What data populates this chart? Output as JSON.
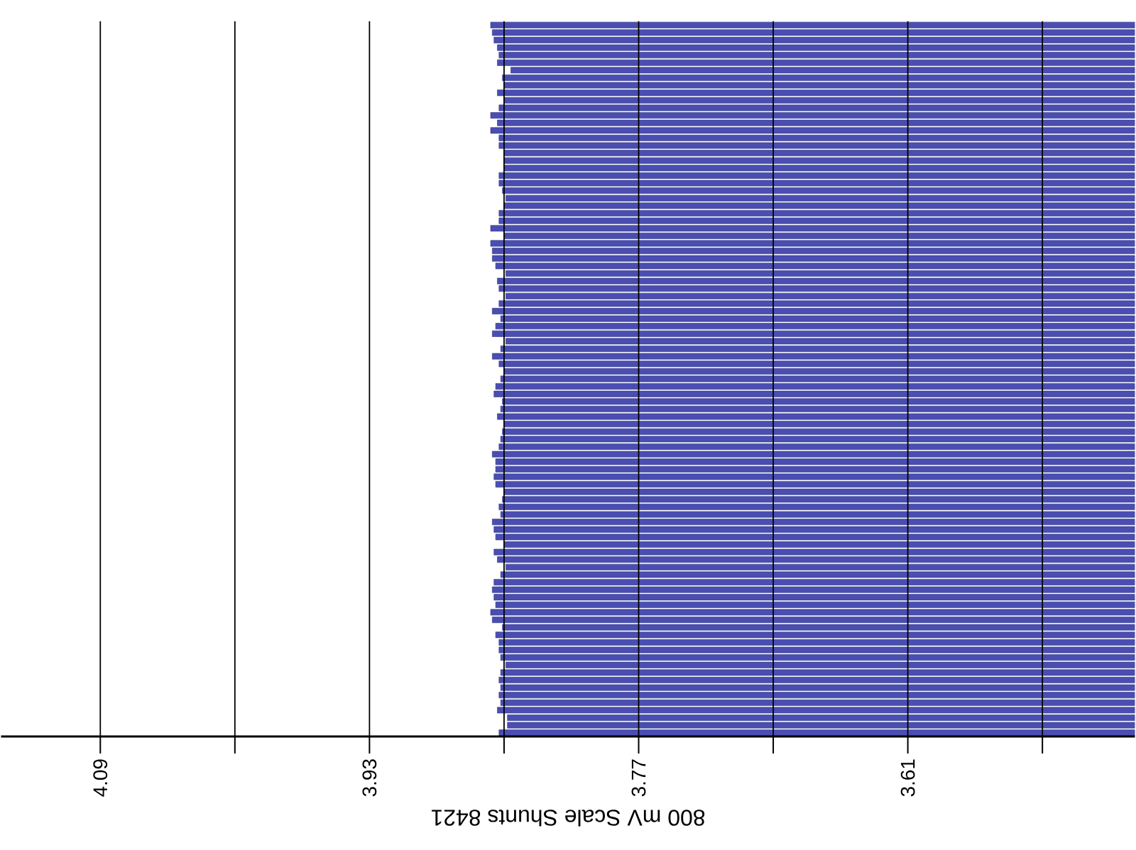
{
  "chart_data": {
    "type": "bar",
    "orientation": "horizontal",
    "xlabel": "800 mV Scale  Shunts 8421",
    "categories": [
      null,
      null,
      null,
      null,
      null,
      null,
      null,
      null,
      null,
      null,
      null,
      null,
      null,
      null,
      null,
      null,
      null,
      null,
      null,
      null,
      null,
      null,
      null,
      null,
      null,
      null,
      null,
      null,
      null,
      null,
      null,
      null,
      null,
      null,
      null,
      null,
      null,
      null,
      null,
      null,
      null,
      null,
      null,
      null,
      null,
      null,
      null,
      null,
      null,
      null,
      null,
      null,
      null,
      null,
      null,
      null,
      null,
      null,
      null,
      null,
      null,
      null,
      null,
      null,
      null,
      null,
      null,
      null,
      null,
      null,
      null,
      null,
      null,
      null,
      null,
      null,
      null,
      null,
      null,
      null,
      null,
      null,
      null,
      null,
      null,
      null,
      null,
      null,
      null,
      null,
      null,
      null,
      null,
      null,
      null
    ],
    "values": [
      3.858,
      3.857,
      3.856,
      3.854,
      3.853,
      3.854,
      3.846,
      3.851,
      3.85,
      3.854,
      3.85,
      3.853,
      3.858,
      3.854,
      3.858,
      3.853,
      3.853,
      3.85,
      3.85,
      3.85,
      3.853,
      3.853,
      3.851,
      3.849,
      3.85,
      3.853,
      3.853,
      3.858,
      3.85,
      3.858,
      3.857,
      3.857,
      3.855,
      3.849,
      3.854,
      3.853,
      3.849,
      3.853,
      3.857,
      3.852,
      3.855,
      3.857,
      3.849,
      3.852,
      3.857,
      3.853,
      3.85,
      3.852,
      3.855,
      3.856,
      3.851,
      3.852,
      3.854,
      3.85,
      3.851,
      3.852,
      3.853,
      3.857,
      3.855,
      3.855,
      3.856,
      3.855,
      3.85,
      3.851,
      3.853,
      3.852,
      3.857,
      3.856,
      3.855,
      3.85,
      3.856,
      3.854,
      3.849,
      3.852,
      3.856,
      3.857,
      3.856,
      3.855,
      3.858,
      3.857,
      3.851,
      3.855,
      3.853,
      3.853,
      3.852,
      3.849,
      3.852,
      3.853,
      3.852,
      3.853,
      3.852,
      3.854,
      3.848,
      3.848,
      3.853
    ],
    "color": "#4a4eb2",
    "xlim": [
      4.149,
      3.475
    ],
    "xticks": [
      4.09,
      {
        "value": 4.01,
        "label": null
      },
      3.93,
      {
        "value": 3.85,
        "label": null
      },
      3.77,
      {
        "value": 3.69,
        "label": null
      },
      3.61,
      {
        "value": 3.53,
        "label": null
      }
    ],
    "grid": "x",
    "tick_labels": "x"
  }
}
